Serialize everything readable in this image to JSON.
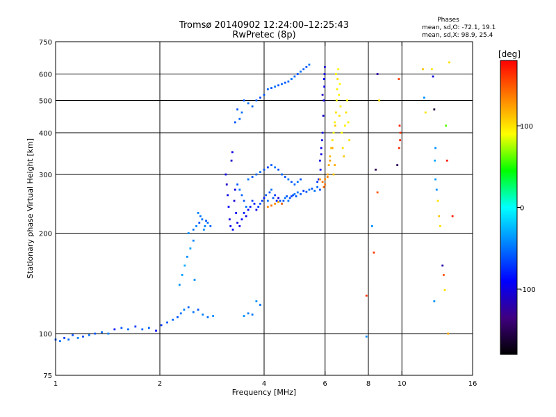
{
  "chart_data": {
    "type": "scatter",
    "title": "Tromsø 20140902 12:24:00–12:25:43",
    "subtitle": "RwPretec (8p)",
    "xlabel": "Frequency [MHz]",
    "ylabel": "Stationary phase Virtual Height [km]",
    "x_scale": "log",
    "y_scale": "log",
    "xlim": [
      1,
      16
    ],
    "ylim": [
      75,
      750
    ],
    "x_ticks": [
      1,
      2,
      4,
      6,
      8,
      10,
      16
    ],
    "y_ticks": [
      75,
      100,
      200,
      300,
      400,
      500,
      600,
      750
    ],
    "grid": true,
    "phase_info": {
      "heading": "Phases",
      "o_line": "mean, sd,O: -72.1, 19.1",
      "x_line": "mean, sd,X:  98.9, 25.4"
    },
    "colorbar": {
      "label": "[deg]",
      "range": [
        -180,
        180
      ],
      "ticks": [
        100,
        0,
        -100
      ],
      "colors": [
        "#ff0000",
        "#ff8000",
        "#ffff00",
        "#00ff00",
        "#00ffff",
        "#0080ff",
        "#0000ff",
        "#400080",
        "#000000"
      ]
    },
    "series": [
      {
        "name": "traces",
        "points": [
          [
            1.0,
            96,
            -60
          ],
          [
            1.03,
            95,
            -50
          ],
          [
            1.06,
            97,
            -70
          ],
          [
            1.09,
            96,
            -55
          ],
          [
            1.12,
            99,
            -60
          ],
          [
            1.16,
            97,
            -45
          ],
          [
            1.2,
            98,
            -65
          ],
          [
            1.25,
            99,
            -50
          ],
          [
            1.3,
            100,
            -60
          ],
          [
            1.36,
            101,
            -55
          ],
          [
            1.42,
            100,
            -45
          ],
          [
            1.48,
            103,
            -80
          ],
          [
            1.55,
            104,
            -60
          ],
          [
            1.62,
            103,
            -50
          ],
          [
            1.7,
            105,
            -70
          ],
          [
            1.78,
            103,
            -55
          ],
          [
            1.86,
            104,
            -60
          ],
          [
            1.95,
            102,
            -90
          ],
          [
            2.02,
            106,
            -70
          ],
          [
            2.1,
            108,
            -60
          ],
          [
            2.18,
            110,
            -55
          ],
          [
            2.25,
            112,
            -60
          ],
          [
            2.3,
            115,
            -50
          ],
          [
            2.35,
            118,
            -45
          ],
          [
            2.42,
            120,
            -55
          ],
          [
            2.5,
            116,
            -50
          ],
          [
            2.58,
            118,
            -60
          ],
          [
            2.66,
            114,
            -45
          ],
          [
            2.75,
            112,
            -50
          ],
          [
            2.85,
            113,
            -40
          ],
          [
            2.28,
            140,
            -40
          ],
          [
            2.32,
            150,
            -35
          ],
          [
            2.36,
            160,
            -30
          ],
          [
            2.4,
            170,
            -40
          ],
          [
            2.45,
            180,
            -35
          ],
          [
            2.5,
            190,
            -45
          ],
          [
            2.52,
            145,
            -40
          ],
          [
            2.42,
            200,
            -40
          ],
          [
            2.5,
            205,
            -50
          ],
          [
            2.55,
            210,
            -45
          ],
          [
            2.6,
            215,
            -60
          ],
          [
            2.65,
            220,
            -50
          ],
          [
            2.7,
            210,
            -45
          ],
          [
            2.75,
            215,
            -50
          ],
          [
            2.8,
            210,
            -55
          ],
          [
            2.68,
            205,
            -40
          ],
          [
            2.62,
            225,
            -50
          ],
          [
            2.58,
            230,
            -45
          ],
          [
            2.72,
            218,
            -60
          ],
          [
            3.1,
            300,
            -100
          ],
          [
            3.12,
            280,
            -110
          ],
          [
            3.14,
            260,
            -100
          ],
          [
            3.16,
            240,
            -90
          ],
          [
            3.18,
            220,
            -100
          ],
          [
            3.2,
            210,
            -95
          ],
          [
            3.22,
            330,
            -110
          ],
          [
            3.24,
            350,
            -100
          ],
          [
            3.25,
            205,
            -90
          ],
          [
            3.28,
            250,
            -105
          ],
          [
            3.3,
            270,
            -100
          ],
          [
            3.32,
            230,
            -95
          ],
          [
            3.35,
            215,
            -100
          ],
          [
            3.4,
            210,
            -100
          ],
          [
            3.45,
            220,
            -90
          ],
          [
            3.5,
            230,
            -80
          ],
          [
            3.55,
            225,
            -100
          ],
          [
            3.6,
            235,
            -90
          ],
          [
            3.65,
            240,
            -80
          ],
          [
            3.7,
            250,
            -70
          ],
          [
            3.75,
            245,
            -80
          ],
          [
            3.8,
            235,
            -100
          ],
          [
            3.85,
            240,
            -70
          ],
          [
            3.9,
            245,
            -60
          ],
          [
            3.95,
            250,
            -70
          ],
          [
            4.0,
            255,
            -80
          ],
          [
            4.05,
            260,
            -60
          ],
          [
            4.1,
            250,
            -50
          ],
          [
            4.15,
            265,
            -60
          ],
          [
            4.2,
            270,
            -50
          ],
          [
            4.25,
            255,
            -60
          ],
          [
            4.3,
            260,
            -70
          ],
          [
            4.35,
            250,
            -80
          ],
          [
            4.4,
            255,
            -100
          ],
          [
            4.45,
            250,
            -60
          ],
          [
            4.5,
            245,
            -70
          ],
          [
            4.55,
            250,
            -60
          ],
          [
            4.6,
            255,
            -50
          ],
          [
            4.65,
            258,
            -60
          ],
          [
            4.7,
            250,
            -50
          ],
          [
            4.75,
            255,
            -60
          ],
          [
            4.8,
            258,
            -70
          ],
          [
            4.85,
            260,
            -60
          ],
          [
            4.9,
            262,
            -50
          ],
          [
            4.95,
            258,
            -60
          ],
          [
            5.0,
            265,
            -50
          ],
          [
            5.1,
            262,
            -60
          ],
          [
            5.2,
            268,
            -70
          ],
          [
            5.3,
            266,
            -60
          ],
          [
            5.4,
            270,
            -50
          ],
          [
            5.5,
            272,
            -60
          ],
          [
            5.6,
            268,
            -50
          ],
          [
            5.7,
            275,
            -55
          ],
          [
            5.8,
            270,
            -60
          ],
          [
            3.6,
            290,
            -50
          ],
          [
            3.7,
            295,
            -60
          ],
          [
            3.8,
            300,
            -55
          ],
          [
            3.9,
            305,
            -50
          ],
          [
            4.0,
            310,
            -60
          ],
          [
            4.1,
            315,
            -70
          ],
          [
            4.2,
            320,
            -60
          ],
          [
            4.3,
            315,
            -50
          ],
          [
            4.4,
            310,
            -60
          ],
          [
            4.5,
            300,
            -55
          ],
          [
            4.6,
            295,
            -60
          ],
          [
            4.7,
            290,
            -50
          ],
          [
            4.8,
            285,
            -60
          ],
          [
            4.9,
            280,
            -55
          ],
          [
            5.0,
            285,
            -50
          ],
          [
            5.1,
            290,
            -60
          ],
          [
            3.35,
            280,
            -60
          ],
          [
            3.4,
            270,
            -50
          ],
          [
            3.45,
            260,
            -55
          ],
          [
            3.5,
            250,
            -60
          ],
          [
            3.55,
            240,
            -50
          ],
          [
            4.1,
            240,
            130
          ],
          [
            4.2,
            242,
            140
          ],
          [
            4.3,
            245,
            130
          ],
          [
            4.4,
            248,
            120
          ],
          [
            4.5,
            245,
            140
          ],
          [
            5.8,
            330,
            -100
          ],
          [
            5.85,
            360,
            -95
          ],
          [
            5.9,
            400,
            -100
          ],
          [
            5.93,
            450,
            -105
          ],
          [
            5.95,
            500,
            -100
          ],
          [
            5.97,
            550,
            -95
          ],
          [
            5.98,
            600,
            -100
          ],
          [
            5.99,
            630,
            -105
          ],
          [
            5.96,
            580,
            -90
          ],
          [
            5.9,
            520,
            -110
          ],
          [
            5.88,
            380,
            -95
          ],
          [
            5.85,
            345,
            -100
          ],
          [
            5.82,
            310,
            -90
          ],
          [
            5.75,
            290,
            -80
          ],
          [
            5.7,
            285,
            -70
          ],
          [
            5.8,
            290,
            130
          ],
          [
            5.9,
            285,
            140
          ],
          [
            6.0,
            290,
            130
          ],
          [
            6.1,
            300,
            125
          ],
          [
            6.15,
            320,
            120
          ],
          [
            6.2,
            340,
            115
          ],
          [
            6.25,
            360,
            110
          ],
          [
            6.3,
            380,
            100
          ],
          [
            6.35,
            400,
            90
          ],
          [
            6.4,
            430,
            95
          ],
          [
            6.45,
            460,
            100
          ],
          [
            6.48,
            500,
            90
          ],
          [
            6.5,
            540,
            95
          ],
          [
            6.52,
            580,
            100
          ],
          [
            6.55,
            620,
            90
          ],
          [
            6.42,
            420,
            110
          ],
          [
            6.3,
            360,
            120
          ],
          [
            6.2,
            330,
            125
          ],
          [
            6.1,
            295,
            135
          ],
          [
            6.0,
            280,
            140
          ],
          [
            5.95,
            275,
            145
          ],
          [
            6.6,
            450,
            100
          ],
          [
            6.65,
            480,
            95
          ],
          [
            6.7,
            400,
            90
          ],
          [
            6.75,
            360,
            100
          ],
          [
            6.8,
            340,
            110
          ],
          [
            6.85,
            420,
            95
          ],
          [
            6.9,
            460,
            100
          ],
          [
            6.95,
            500,
            90
          ],
          [
            7.0,
            430,
            95
          ],
          [
            7.05,
            380,
            100
          ],
          [
            6.58,
            520,
            95
          ],
          [
            6.62,
            560,
            90
          ],
          [
            6.45,
            600,
            95
          ],
          [
            6.35,
            300,
            110
          ],
          [
            6.4,
            320,
            120
          ],
          [
            3.5,
            500,
            -60
          ],
          [
            3.6,
            490,
            -50
          ],
          [
            3.7,
            480,
            -55
          ],
          [
            3.8,
            500,
            -60
          ],
          [
            3.9,
            510,
            -65
          ],
          [
            4.0,
            520,
            -60
          ],
          [
            4.1,
            540,
            -55
          ],
          [
            4.2,
            545,
            -60
          ],
          [
            4.3,
            550,
            -50
          ],
          [
            4.4,
            555,
            -60
          ],
          [
            4.5,
            560,
            -55
          ],
          [
            4.6,
            565,
            -60
          ],
          [
            4.7,
            570,
            -55
          ],
          [
            4.8,
            580,
            -50
          ],
          [
            4.9,
            590,
            -55
          ],
          [
            5.0,
            600,
            -60
          ],
          [
            5.1,
            610,
            -50
          ],
          [
            5.2,
            620,
            -55
          ],
          [
            5.3,
            630,
            -60
          ],
          [
            5.4,
            640,
            -50
          ],
          [
            3.3,
            430,
            -60
          ],
          [
            3.4,
            440,
            -55
          ],
          [
            3.45,
            460,
            -50
          ],
          [
            3.35,
            470,
            -60
          ],
          [
            3.8,
            125,
            -40
          ],
          [
            3.9,
            122,
            -50
          ],
          [
            3.6,
            115,
            -45
          ],
          [
            3.5,
            113,
            -40
          ],
          [
            3.7,
            114,
            -50
          ],
          [
            8.5,
            600,
            -120
          ],
          [
            8.4,
            310,
            -150
          ],
          [
            8.5,
            265,
            150
          ],
          [
            8.6,
            500,
            100
          ],
          [
            8.2,
            210,
            -40
          ],
          [
            8.3,
            175,
            160
          ],
          [
            7.9,
            130,
            160
          ],
          [
            7.9,
            98,
            -40
          ],
          [
            9.8,
            580,
            160
          ],
          [
            9.85,
            420,
            170
          ],
          [
            9.9,
            400,
            165
          ],
          [
            9.88,
            380,
            170
          ],
          [
            9.82,
            360,
            165
          ],
          [
            9.7,
            320,
            -150
          ],
          [
            11.5,
            620,
            110
          ],
          [
            11.6,
            510,
            -40
          ],
          [
            11.7,
            460,
            100
          ],
          [
            12.3,
            590,
            -100
          ],
          [
            12.4,
            470,
            -160
          ],
          [
            12.5,
            360,
            -40
          ],
          [
            12.45,
            330,
            -30
          ],
          [
            12.5,
            290,
            -35
          ],
          [
            12.6,
            270,
            -40
          ],
          [
            12.7,
            250,
            100
          ],
          [
            12.8,
            225,
            110
          ],
          [
            12.9,
            210,
            100
          ],
          [
            13.1,
            160,
            -120
          ],
          [
            13.2,
            150,
            150
          ],
          [
            13.3,
            135,
            100
          ],
          [
            13.4,
            420,
            60
          ],
          [
            13.5,
            330,
            170
          ],
          [
            13.6,
            100,
            120
          ],
          [
            12.4,
            125,
            -40
          ],
          [
            12.2,
            620,
            100
          ],
          [
            14.0,
            225,
            170
          ],
          [
            13.7,
            650,
            100
          ]
        ]
      }
    ]
  }
}
